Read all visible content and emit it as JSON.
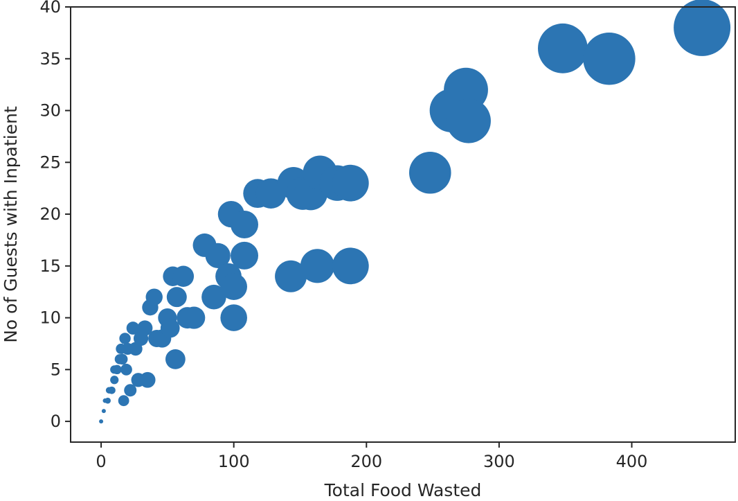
{
  "chart_data": {
    "type": "scatter",
    "title": "",
    "xlabel": "Total Food Wasted",
    "ylabel": "No of Guests with Inpatient",
    "xlim": [
      -23,
      478
    ],
    "ylim": [
      -2,
      40
    ],
    "xticks": [
      0,
      100,
      200,
      300,
      400
    ],
    "yticks": [
      0,
      5,
      10,
      15,
      20,
      25,
      30,
      35,
      40
    ],
    "grid": false,
    "marker_size_encodes": "Total Food Wasted",
    "color": "#2c75b3",
    "points": [
      {
        "x": 0,
        "y": 0
      },
      {
        "x": 2,
        "y": 1
      },
      {
        "x": 3,
        "y": 2
      },
      {
        "x": 5,
        "y": 2
      },
      {
        "x": 6,
        "y": 3
      },
      {
        "x": 8,
        "y": 3
      },
      {
        "x": 10,
        "y": 4
      },
      {
        "x": 10,
        "y": 5
      },
      {
        "x": 12,
        "y": 5
      },
      {
        "x": 14,
        "y": 6
      },
      {
        "x": 15,
        "y": 7
      },
      {
        "x": 16,
        "y": 6
      },
      {
        "x": 17,
        "y": 2
      },
      {
        "x": 18,
        "y": 8
      },
      {
        "x": 19,
        "y": 5
      },
      {
        "x": 20,
        "y": 7
      },
      {
        "x": 22,
        "y": 3
      },
      {
        "x": 24,
        "y": 9
      },
      {
        "x": 26,
        "y": 7
      },
      {
        "x": 28,
        "y": 4
      },
      {
        "x": 30,
        "y": 8
      },
      {
        "x": 33,
        "y": 9
      },
      {
        "x": 35,
        "y": 4
      },
      {
        "x": 37,
        "y": 11
      },
      {
        "x": 40,
        "y": 12
      },
      {
        "x": 42,
        "y": 8
      },
      {
        "x": 46,
        "y": 8
      },
      {
        "x": 50,
        "y": 10
      },
      {
        "x": 52,
        "y": 9
      },
      {
        "x": 54,
        "y": 14
      },
      {
        "x": 56,
        "y": 6
      },
      {
        "x": 57,
        "y": 12
      },
      {
        "x": 62,
        "y": 14
      },
      {
        "x": 65,
        "y": 10
      },
      {
        "x": 70,
        "y": 10
      },
      {
        "x": 78,
        "y": 17
      },
      {
        "x": 85,
        "y": 12
      },
      {
        "x": 88,
        "y": 16
      },
      {
        "x": 96,
        "y": 14
      },
      {
        "x": 98,
        "y": 20
      },
      {
        "x": 100,
        "y": 10
      },
      {
        "x": 100,
        "y": 13
      },
      {
        "x": 108,
        "y": 19
      },
      {
        "x": 108,
        "y": 16
      },
      {
        "x": 118,
        "y": 22
      },
      {
        "x": 128,
        "y": 22
      },
      {
        "x": 143,
        "y": 14
      },
      {
        "x": 145,
        "y": 23
      },
      {
        "x": 152,
        "y": 22
      },
      {
        "x": 158,
        "y": 22
      },
      {
        "x": 163,
        "y": 15
      },
      {
        "x": 165,
        "y": 24
      },
      {
        "x": 178,
        "y": 23
      },
      {
        "x": 188,
        "y": 15
      },
      {
        "x": 188,
        "y": 23
      },
      {
        "x": 248,
        "y": 24
      },
      {
        "x": 264,
        "y": 30
      },
      {
        "x": 275,
        "y": 32
      },
      {
        "x": 277,
        "y": 29
      },
      {
        "x": 348,
        "y": 36
      },
      {
        "x": 383,
        "y": 35
      },
      {
        "x": 453,
        "y": 38
      }
    ]
  }
}
